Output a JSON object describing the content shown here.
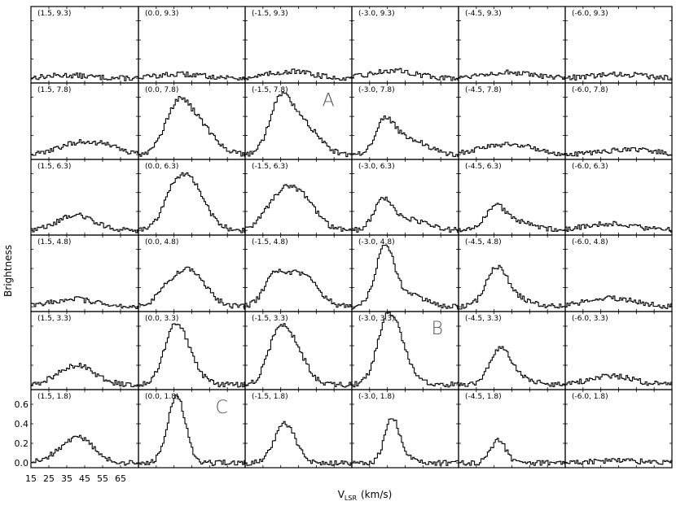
{
  "chart_data": {
    "type": "line",
    "style": "step-spectra-grid",
    "xlabel": "V",
    "xlabel_sub": "LSR",
    "xlabel_unit": "(km/s)",
    "ylabel": "Brightness",
    "xlim": [
      15,
      75
    ],
    "ylim": [
      -0.05,
      0.75
    ],
    "x_ticks": [
      15,
      25,
      35,
      45,
      55,
      65
    ],
    "y_ticks": [
      0.0,
      0.2,
      0.4,
      0.6
    ],
    "y_tick_labels": [
      "0.0",
      "0.2",
      "0.4",
      "0.6"
    ],
    "grid": false,
    "columns": [
      "1.5",
      "0.0",
      "-1.5",
      "-3.0",
      "-4.5",
      "-6.0"
    ],
    "rows": [
      "9.3",
      "7.8",
      "6.3",
      "4.8",
      "3.3",
      "1.8"
    ],
    "panels": [
      {
        "label": "(1.5, 9.3)",
        "components": [
          [
            35,
            12,
            0.03
          ]
        ]
      },
      {
        "label": "(0.0, 9.3)",
        "components": [
          [
            38,
            14,
            0.04
          ]
        ]
      },
      {
        "label": "(-1.5, 9.3)",
        "components": [
          [
            40,
            12,
            0.07
          ]
        ]
      },
      {
        "label": "(-3.0, 9.3)",
        "components": [
          [
            38,
            12,
            0.08
          ]
        ]
      },
      {
        "label": "(-4.5, 9.3)",
        "components": [
          [
            40,
            14,
            0.06
          ]
        ]
      },
      {
        "label": "(-6.0, 9.3)",
        "components": [
          [
            45,
            14,
            0.04
          ]
        ]
      },
      {
        "label": "(1.5, 7.8)",
        "components": [
          [
            40,
            10,
            0.12
          ],
          [
            57,
            8,
            0.08
          ]
        ]
      },
      {
        "label": "(0.0, 7.8)",
        "components": [
          [
            36,
            7,
            0.44
          ],
          [
            48,
            9,
            0.3
          ]
        ]
      },
      {
        "label": "(-1.5, 7.8)",
        "components": [
          [
            34,
            6,
            0.48
          ],
          [
            46,
            9,
            0.34
          ]
        ]
      },
      {
        "label": "(-3.0, 7.8)",
        "components": [
          [
            33,
            5,
            0.3
          ],
          [
            45,
            10,
            0.18
          ]
        ]
      },
      {
        "label": "(-4.5, 7.8)",
        "components": [
          [
            35,
            12,
            0.08
          ],
          [
            52,
            10,
            0.06
          ]
        ]
      },
      {
        "label": "(-6.0, 7.8)",
        "components": [
          [
            50,
            15,
            0.05
          ]
        ]
      },
      {
        "label": "(1.5, 6.3)",
        "components": [
          [
            40,
            10,
            0.16
          ]
        ]
      },
      {
        "label": "(0.0, 6.3)",
        "components": [
          [
            42,
            9,
            0.56
          ],
          [
            33,
            5,
            0.12
          ]
        ]
      },
      {
        "label": "(-1.5, 6.3)",
        "components": [
          [
            34,
            8,
            0.34
          ],
          [
            47,
            8,
            0.3
          ]
        ]
      },
      {
        "label": "(-3.0, 6.3)",
        "components": [
          [
            32,
            5,
            0.3
          ],
          [
            46,
            10,
            0.12
          ]
        ]
      },
      {
        "label": "(-4.5, 6.3)",
        "components": [
          [
            35,
            5,
            0.22
          ],
          [
            46,
            10,
            0.1
          ]
        ]
      },
      {
        "label": "(-6.0, 6.3)",
        "components": [
          [
            40,
            14,
            0.07
          ]
        ]
      },
      {
        "label": "(1.5, 4.8)",
        "components": [
          [
            38,
            12,
            0.08
          ]
        ]
      },
      {
        "label": "(0.0, 4.8)",
        "components": [
          [
            43,
            9,
            0.38
          ],
          [
            30,
            6,
            0.1
          ]
        ]
      },
      {
        "label": "(-1.5, 4.8)",
        "components": [
          [
            31,
            6,
            0.3
          ],
          [
            48,
            8,
            0.3
          ],
          [
            40,
            6,
            0.08
          ]
        ]
      },
      {
        "label": "(-3.0, 4.8)",
        "components": [
          [
            33,
            5,
            0.58
          ],
          [
            44,
            10,
            0.14
          ]
        ]
      },
      {
        "label": "(-4.5, 4.8)",
        "components": [
          [
            36,
            6,
            0.38
          ],
          [
            47,
            9,
            0.08
          ]
        ]
      },
      {
        "label": "(-6.0, 4.8)",
        "components": [
          [
            40,
            14,
            0.09
          ]
        ]
      },
      {
        "label": "(1.5, 3.3)",
        "components": [
          [
            40,
            10,
            0.2
          ]
        ]
      },
      {
        "label": "(0.0, 3.3)",
        "components": [
          [
            35,
            6,
            0.58
          ],
          [
            44,
            6,
            0.16
          ]
        ]
      },
      {
        "label": "(-1.5, 3.3)",
        "components": [
          [
            33,
            6,
            0.44
          ],
          [
            42,
            7,
            0.34
          ]
        ]
      },
      {
        "label": "(-3.0, 3.3)",
        "components": [
          [
            35,
            6,
            0.68
          ],
          [
            44,
            6,
            0.18
          ]
        ]
      },
      {
        "label": "(-4.5, 3.3)",
        "components": [
          [
            38,
            6,
            0.34
          ],
          [
            48,
            8,
            0.06
          ]
        ]
      },
      {
        "label": "(-6.0, 3.3)",
        "components": [
          [
            40,
            12,
            0.09
          ]
        ]
      },
      {
        "label": "(1.5, 1.8)",
        "components": [
          [
            42,
            8,
            0.24
          ],
          [
            30,
            8,
            0.06
          ]
        ]
      },
      {
        "label": "(0.0, 1.8)",
        "components": [
          [
            36,
            5,
            0.68
          ]
        ]
      },
      {
        "label": "(-1.5, 1.8)",
        "components": [
          [
            37,
            6,
            0.4
          ]
        ]
      },
      {
        "label": "(-3.0, 1.8)",
        "components": [
          [
            37,
            4,
            0.44
          ],
          [
            45,
            6,
            0.06
          ]
        ]
      },
      {
        "label": "(-4.5, 1.8)",
        "components": [
          [
            37,
            4,
            0.24
          ]
        ]
      },
      {
        "label": "(-6.0, 1.8)",
        "components": [
          [
            45,
            14,
            0.02
          ]
        ]
      }
    ],
    "annotations": [
      {
        "text": "A",
        "panel_row": 1,
        "panel_col": 2
      },
      {
        "text": "B",
        "panel_row": 4,
        "panel_col": 3
      },
      {
        "text": "C",
        "panel_row": 5,
        "panel_col": 1
      }
    ]
  }
}
